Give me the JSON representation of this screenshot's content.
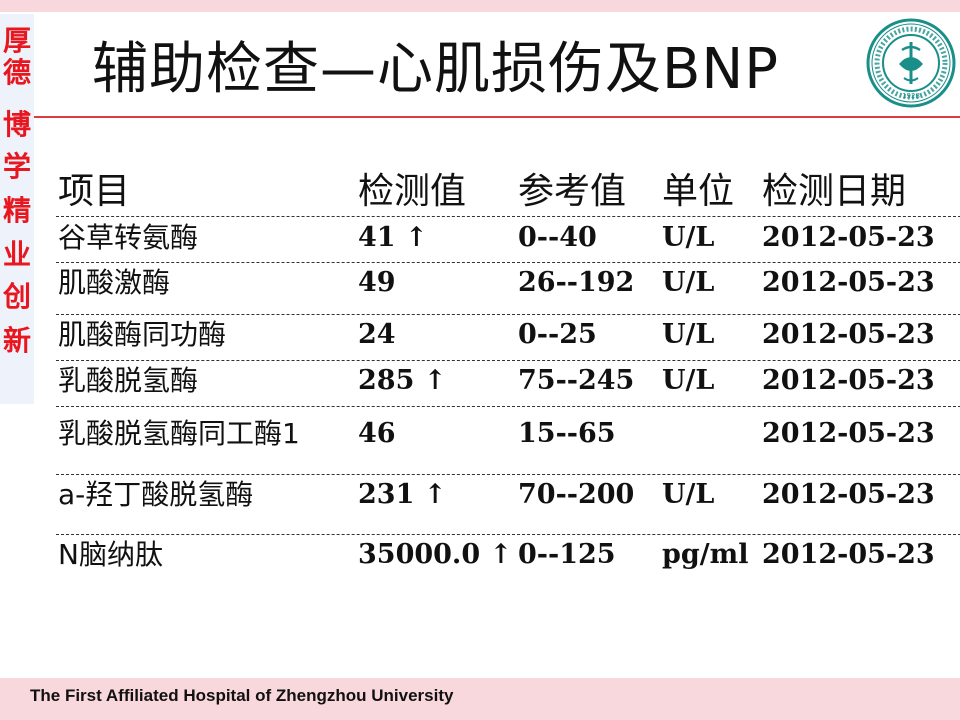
{
  "slide": {
    "title": "辅助检查—心肌损伤及BNP",
    "footer": "The First Affiliated Hospital of Zhengzhou University",
    "motto": [
      "厚",
      "德",
      "博",
      "学",
      "精",
      "业",
      "创",
      "新"
    ],
    "logo_icon": "hospital-seal-icon",
    "logo_year": "1928"
  },
  "colors": {
    "accent_red": "#e8161e",
    "band_pink": "#f8d7dd",
    "logo_teal": "#1a8f8a"
  },
  "table": {
    "headers": [
      "项目",
      "检测值",
      "参考值",
      "单位",
      "检测日期"
    ],
    "rows": [
      {
        "name": "谷草转氨酶",
        "value": "41 ↑",
        "reference": "0--40",
        "unit": "U/L",
        "date": "2012-05-23"
      },
      {
        "name": "肌酸激酶",
        "value": "49",
        "reference": "26--192",
        "unit": "U/L",
        "date": "2012-05-23"
      },
      {
        "name": "肌酸酶同功酶",
        "value": "24",
        "reference": "0--25",
        "unit": "U/L",
        "date": "2012-05-23"
      },
      {
        "name": "乳酸脱氢酶",
        "value": "285 ↑",
        "reference": "75--245",
        "unit": "U/L",
        "date": "2012-05-23"
      },
      {
        "name": "乳酸脱氢酶同工酶1",
        "value": "46",
        "reference": "15--65",
        "unit": "",
        "date": "2012-05-23"
      },
      {
        "name": "a-羟丁酸脱氢酶",
        "value": "231 ↑",
        "reference": "70--200",
        "unit": "U/L",
        "date": "2012-05-23"
      },
      {
        "name": "N脑纳肽",
        "value": "35000.0 ↑",
        "reference": "0--125",
        "unit": "pg/ml",
        "date": "2012-05-23"
      }
    ]
  }
}
